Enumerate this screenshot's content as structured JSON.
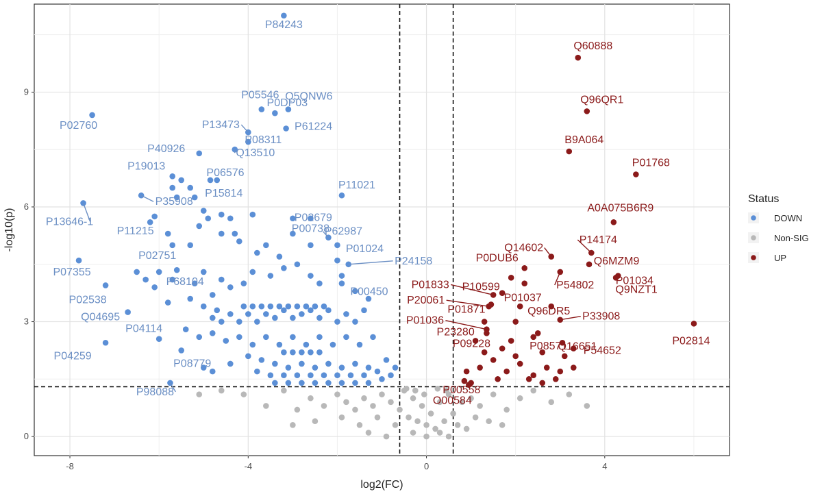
{
  "chart_data": {
    "type": "scatter",
    "xlabel": "log2(FC)",
    "ylabel": "-log10(p)",
    "xlim": [
      -8.8,
      6.8
    ],
    "ylim": [
      -0.5,
      11.3
    ],
    "x_ticks": [
      -8,
      -4,
      0,
      4
    ],
    "x_tick_labels": [
      "-8",
      "-4",
      "0",
      "4"
    ],
    "y_ticks": [
      0,
      3,
      6,
      9
    ],
    "y_tick_labels": [
      "0",
      "3",
      "6",
      "9"
    ],
    "thresholds": {
      "log2fc": [
        -0.6,
        0.6
      ],
      "neglog10p": 1.3
    },
    "colors": {
      "DOWN": "#5b8fd6",
      "Non-SIG": "#b8b8b8",
      "UP": "#8b1a1a",
      "label_down": "#6b8fc4",
      "label_up": "#8b1a1a"
    },
    "legend": {
      "title": "Status",
      "position": "right",
      "items": [
        {
          "key": "DOWN",
          "label": "DOWN"
        },
        {
          "key": "Non-SIG",
          "label": "Non-SIG"
        },
        {
          "key": "UP",
          "label": "UP"
        }
      ]
    },
    "labeled_points": [
      {
        "id": "P84243",
        "status": "DOWN",
        "x": -3.2,
        "y": 11.0
      },
      {
        "id": "P05546",
        "status": "DOWN",
        "x": -3.7,
        "y": 8.55
      },
      {
        "id": "Q5QNW6",
        "status": "DOWN",
        "x": -3.1,
        "y": 8.55
      },
      {
        "id": "P13473",
        "status": "DOWN",
        "x": -4.0,
        "y": 7.95
      },
      {
        "id": "P0DP03",
        "status": "DOWN",
        "x": -3.4,
        "y": 8.45
      },
      {
        "id": "P61224",
        "status": "DOWN",
        "x": -3.15,
        "y": 8.05
      },
      {
        "id": "P08311",
        "status": "DOWN",
        "x": -4.0,
        "y": 7.7
      },
      {
        "id": "P40926",
        "status": "DOWN",
        "x": -5.1,
        "y": 7.4
      },
      {
        "id": "Q13510",
        "status": "DOWN",
        "x": -4.3,
        "y": 7.5
      },
      {
        "id": "P02760",
        "status": "DOWN",
        "x": -7.5,
        "y": 8.4
      },
      {
        "id": "P19013",
        "status": "DOWN",
        "x": -5.7,
        "y": 6.8
      },
      {
        "id": "P06576",
        "status": "DOWN",
        "x": -4.85,
        "y": 6.7
      },
      {
        "id": "P15814",
        "status": "DOWN",
        "x": -4.7,
        "y": 6.7
      },
      {
        "id": "P11021",
        "status": "DOWN",
        "x": -1.9,
        "y": 6.3
      },
      {
        "id": "P35908",
        "status": "DOWN",
        "x": -6.4,
        "y": 6.3
      },
      {
        "id": "P00738",
        "status": "DOWN",
        "x": -2.6,
        "y": 5.7
      },
      {
        "id": "P13646-1",
        "status": "DOWN",
        "x": -7.7,
        "y": 6.1
      },
      {
        "id": "P11215",
        "status": "DOWN",
        "x": -6.1,
        "y": 5.75
      },
      {
        "id": "P02679",
        "status": "DOWN",
        "x": -3.0,
        "y": 5.7
      },
      {
        "id": "P62987",
        "status": "DOWN",
        "x": -2.2,
        "y": 5.2
      },
      {
        "id": "P01024",
        "status": "DOWN",
        "x": -2.0,
        "y": 5.0
      },
      {
        "id": "P02751",
        "status": "DOWN",
        "x": -5.7,
        "y": 5.0
      },
      {
        "id": "P07355",
        "status": "DOWN",
        "x": -7.8,
        "y": 4.6
      },
      {
        "id": "P24158",
        "status": "DOWN",
        "x": -1.75,
        "y": 4.5
      },
      {
        "id": "P68104",
        "status": "DOWN",
        "x": -5.6,
        "y": 4.35
      },
      {
        "id": "P02538",
        "status": "DOWN",
        "x": -7.2,
        "y": 3.95
      },
      {
        "id": "P00450",
        "status": "DOWN",
        "x": -1.9,
        "y": 4.2
      },
      {
        "id": "Q04695",
        "status": "DOWN",
        "x": -6.7,
        "y": 3.25
      },
      {
        "id": "P04114",
        "status": "DOWN",
        "x": -6.0,
        "y": 2.55
      },
      {
        "id": "P04259",
        "status": "DOWN",
        "x": -7.2,
        "y": 2.45
      },
      {
        "id": "P08779",
        "status": "DOWN",
        "x": -5.5,
        "y": 2.25
      },
      {
        "id": "P98088",
        "status": "DOWN",
        "x": -5.75,
        "y": 1.4
      },
      {
        "id": "Q60888",
        "status": "UP",
        "x": 3.4,
        "y": 9.9
      },
      {
        "id": "Q96QR1",
        "status": "UP",
        "x": 3.6,
        "y": 8.5
      },
      {
        "id": "B9A064",
        "status": "UP",
        "x": 3.2,
        "y": 7.45
      },
      {
        "id": "P01768",
        "status": "UP",
        "x": 4.7,
        "y": 6.85
      },
      {
        "id": "A0A075B6R9",
        "status": "UP",
        "x": 4.2,
        "y": 5.6
      },
      {
        "id": "Q14602",
        "status": "UP",
        "x": 2.8,
        "y": 4.7
      },
      {
        "id": "P14174",
        "status": "UP",
        "x": 3.7,
        "y": 4.8
      },
      {
        "id": "Q6MZM9",
        "status": "UP",
        "x": 3.65,
        "y": 4.5
      },
      {
        "id": "P0DUB6",
        "status": "UP",
        "x": 2.2,
        "y": 4.4
      },
      {
        "id": "P01034",
        "status": "UP",
        "x": 4.3,
        "y": 4.2
      },
      {
        "id": "P54802",
        "status": "UP",
        "x": 3.0,
        "y": 4.3
      },
      {
        "id": "Q9NZT1",
        "status": "UP",
        "x": 4.25,
        "y": 4.15
      },
      {
        "id": "P10599",
        "status": "UP",
        "x": 1.9,
        "y": 4.15
      },
      {
        "id": "P01833",
        "status": "UP",
        "x": 1.5,
        "y": 3.7
      },
      {
        "id": "P01037",
        "status": "UP",
        "x": 1.7,
        "y": 3.75
      },
      {
        "id": "P01871",
        "status": "UP",
        "x": 1.45,
        "y": 3.45
      },
      {
        "id": "P20061",
        "status": "UP",
        "x": 1.4,
        "y": 3.4
      },
      {
        "id": "Q96DR5",
        "status": "UP",
        "x": 2.1,
        "y": 3.4
      },
      {
        "id": "P33908",
        "status": "UP",
        "x": 3.0,
        "y": 3.05
      },
      {
        "id": "P23280",
        "status": "UP",
        "x": 1.3,
        "y": 3.0
      },
      {
        "id": "P01036",
        "status": "UP",
        "x": 1.35,
        "y": 2.8
      },
      {
        "id": "P08571",
        "status": "UP",
        "x": 2.4,
        "y": 2.6
      },
      {
        "id": "Q16651",
        "status": "UP",
        "x": 3.05,
        "y": 2.45
      },
      {
        "id": "P02814",
        "status": "UP",
        "x": 6.0,
        "y": 2.95
      },
      {
        "id": "P09228",
        "status": "UP",
        "x": 1.35,
        "y": 2.7
      },
      {
        "id": "P54652",
        "status": "UP",
        "x": 3.3,
        "y": 2.3
      },
      {
        "id": "P00558",
        "status": "UP",
        "x": 0.85,
        "y": 1.45
      },
      {
        "id": "O00584",
        "status": "UP",
        "x": 0.95,
        "y": 1.35
      }
    ],
    "unlabeled_points": [
      {
        "x": -5.7,
        "y": 6.5
      },
      {
        "x": -5.5,
        "y": 6.7
      },
      {
        "x": -5.3,
        "y": 6.5
      },
      {
        "x": -5.6,
        "y": 6.25
      },
      {
        "x": -5.2,
        "y": 6.25
      },
      {
        "x": -6.2,
        "y": 5.6
      },
      {
        "x": -5.8,
        "y": 5.3
      },
      {
        "x": -5.3,
        "y": 5.0
      },
      {
        "x": -5.1,
        "y": 5.5
      },
      {
        "x": -5.0,
        "y": 5.9
      },
      {
        "x": -4.9,
        "y": 5.7
      },
      {
        "x": -4.6,
        "y": 5.3
      },
      {
        "x": -4.6,
        "y": 5.8
      },
      {
        "x": -4.4,
        "y": 5.7
      },
      {
        "x": -4.3,
        "y": 5.3
      },
      {
        "x": -4.2,
        "y": 5.1
      },
      {
        "x": -3.9,
        "y": 5.8
      },
      {
        "x": -3.8,
        "y": 4.8
      },
      {
        "x": -3.6,
        "y": 5.0
      },
      {
        "x": -3.3,
        "y": 4.7
      },
      {
        "x": -3.9,
        "y": 4.3
      },
      {
        "x": -4.1,
        "y": 4.0
      },
      {
        "x": -3.5,
        "y": 4.2
      },
      {
        "x": -3.2,
        "y": 4.4
      },
      {
        "x": -2.9,
        "y": 4.5
      },
      {
        "x": -2.6,
        "y": 4.2
      },
      {
        "x": -2.4,
        "y": 4.0
      },
      {
        "x": -2.0,
        "y": 4.6
      },
      {
        "x": -2.6,
        "y": 5.0
      },
      {
        "x": -3.0,
        "y": 5.3
      },
      {
        "x": -6.5,
        "y": 4.3
      },
      {
        "x": -6.3,
        "y": 4.1
      },
      {
        "x": -6.0,
        "y": 4.3
      },
      {
        "x": -5.7,
        "y": 4.1
      },
      {
        "x": -5.2,
        "y": 4.0
      },
      {
        "x": -5.0,
        "y": 4.3
      },
      {
        "x": -4.8,
        "y": 3.7
      },
      {
        "x": -4.6,
        "y": 4.1
      },
      {
        "x": -4.4,
        "y": 3.9
      },
      {
        "x": -6.1,
        "y": 3.9
      },
      {
        "x": -5.3,
        "y": 3.6
      },
      {
        "x": -5.0,
        "y": 3.4
      },
      {
        "x": -4.8,
        "y": 3.1
      },
      {
        "x": -4.6,
        "y": 3.0
      },
      {
        "x": -4.4,
        "y": 3.2
      },
      {
        "x": -4.2,
        "y": 3.0
      },
      {
        "x": -4.0,
        "y": 3.2
      },
      {
        "x": -3.8,
        "y": 3.0
      },
      {
        "x": -3.6,
        "y": 3.2
      },
      {
        "x": -3.4,
        "y": 3.1
      },
      {
        "x": -3.2,
        "y": 3.3
      },
      {
        "x": -3.0,
        "y": 3.1
      },
      {
        "x": -2.8,
        "y": 3.2
      },
      {
        "x": -2.6,
        "y": 3.3
      },
      {
        "x": -2.4,
        "y": 3.1
      },
      {
        "x": -2.2,
        "y": 3.3
      },
      {
        "x": -2.0,
        "y": 3.0
      },
      {
        "x": -1.8,
        "y": 3.2
      },
      {
        "x": -1.6,
        "y": 3.0
      },
      {
        "x": -1.4,
        "y": 3.3
      },
      {
        "x": -4.1,
        "y": 3.4
      },
      {
        "x": -3.9,
        "y": 3.4
      },
      {
        "x": -3.7,
        "y": 3.4
      },
      {
        "x": -3.5,
        "y": 3.4
      },
      {
        "x": -3.3,
        "y": 3.4
      },
      {
        "x": -3.1,
        "y": 3.4
      },
      {
        "x": -2.9,
        "y": 3.4
      },
      {
        "x": -2.7,
        "y": 3.4
      },
      {
        "x": -2.5,
        "y": 3.4
      },
      {
        "x": -2.3,
        "y": 3.4
      },
      {
        "x": -5.4,
        "y": 2.8
      },
      {
        "x": -5.1,
        "y": 2.6
      },
      {
        "x": -4.8,
        "y": 2.7
      },
      {
        "x": -4.5,
        "y": 2.5
      },
      {
        "x": -4.2,
        "y": 2.6
      },
      {
        "x": -3.9,
        "y": 2.4
      },
      {
        "x": -3.6,
        "y": 2.6
      },
      {
        "x": -3.3,
        "y": 2.4
      },
      {
        "x": -3.0,
        "y": 2.6
      },
      {
        "x": -2.7,
        "y": 2.4
      },
      {
        "x": -2.4,
        "y": 2.6
      },
      {
        "x": -2.1,
        "y": 2.4
      },
      {
        "x": -1.8,
        "y": 2.6
      },
      {
        "x": -1.5,
        "y": 2.4
      },
      {
        "x": -1.2,
        "y": 2.6
      },
      {
        "x": -3.2,
        "y": 2.2
      },
      {
        "x": -3.0,
        "y": 2.2
      },
      {
        "x": -2.8,
        "y": 2.2
      },
      {
        "x": -2.6,
        "y": 2.2
      },
      {
        "x": -2.4,
        "y": 2.2
      },
      {
        "x": -4.0,
        "y": 2.1
      },
      {
        "x": -3.7,
        "y": 2.0
      },
      {
        "x": -3.4,
        "y": 1.9
      },
      {
        "x": -3.1,
        "y": 1.8
      },
      {
        "x": -2.8,
        "y": 1.9
      },
      {
        "x": -2.5,
        "y": 1.8
      },
      {
        "x": -2.2,
        "y": 1.9
      },
      {
        "x": -1.9,
        "y": 1.8
      },
      {
        "x": -1.6,
        "y": 1.9
      },
      {
        "x": -1.3,
        "y": 1.8
      },
      {
        "x": -3.8,
        "y": 1.7
      },
      {
        "x": -3.5,
        "y": 1.6
      },
      {
        "x": -3.2,
        "y": 1.6
      },
      {
        "x": -2.9,
        "y": 1.6
      },
      {
        "x": -2.6,
        "y": 1.6
      },
      {
        "x": -2.3,
        "y": 1.6
      },
      {
        "x": -2.0,
        "y": 1.6
      },
      {
        "x": -1.7,
        "y": 1.6
      },
      {
        "x": -1.4,
        "y": 1.6
      },
      {
        "x": -1.1,
        "y": 1.7
      },
      {
        "x": -3.4,
        "y": 1.4
      },
      {
        "x": -3.1,
        "y": 1.4
      },
      {
        "x": -2.8,
        "y": 1.4
      },
      {
        "x": -2.5,
        "y": 1.4
      },
      {
        "x": -2.2,
        "y": 1.4
      },
      {
        "x": -1.9,
        "y": 1.4
      },
      {
        "x": -1.6,
        "y": 1.4
      },
      {
        "x": -1.3,
        "y": 1.4
      },
      {
        "x": -1.0,
        "y": 1.5
      },
      {
        "x": -0.8,
        "y": 1.6
      },
      {
        "x": -5.0,
        "y": 1.8
      },
      {
        "x": -4.8,
        "y": 1.7
      },
      {
        "x": -4.4,
        "y": 1.9
      },
      {
        "x": -0.9,
        "y": 2.0
      },
      {
        "x": -0.7,
        "y": 1.8
      },
      {
        "x": -1.3,
        "y": 3.6
      },
      {
        "x": -1.6,
        "y": 3.8
      },
      {
        "x": -1.9,
        "y": 4.0
      },
      {
        "x": -4.7,
        "y": 3.3
      },
      {
        "x": -5.8,
        "y": 3.5
      },
      {
        "x": 0.9,
        "y": 1.7
      },
      {
        "x": 1.2,
        "y": 1.8
      },
      {
        "x": 1.5,
        "y": 2.0
      },
      {
        "x": 1.8,
        "y": 1.7
      },
      {
        "x": 2.1,
        "y": 1.9
      },
      {
        "x": 2.4,
        "y": 1.6
      },
      {
        "x": 2.7,
        "y": 1.8
      },
      {
        "x": 3.0,
        "y": 1.7
      },
      {
        "x": 3.3,
        "y": 1.8
      },
      {
        "x": 2.3,
        "y": 1.5
      },
      {
        "x": 1.3,
        "y": 2.2
      },
      {
        "x": 1.7,
        "y": 2.3
      },
      {
        "x": 2.0,
        "y": 2.1
      },
      {
        "x": 2.6,
        "y": 2.2
      },
      {
        "x": 3.1,
        "y": 2.1
      },
      {
        "x": 1.1,
        "y": 2.5
      },
      {
        "x": 1.9,
        "y": 2.5
      },
      {
        "x": 2.5,
        "y": 2.7
      },
      {
        "x": 2.8,
        "y": 3.4
      },
      {
        "x": 2.0,
        "y": 3.0
      },
      {
        "x": 1.0,
        "y": 1.4
      },
      {
        "x": 2.6,
        "y": 1.4
      },
      {
        "x": 2.9,
        "y": 1.5
      },
      {
        "x": 1.6,
        "y": 1.5
      },
      {
        "x": 2.2,
        "y": 4.0
      },
      {
        "x": -0.5,
        "y": 1.2
      },
      {
        "x": -0.3,
        "y": 1.0
      },
      {
        "x": -0.1,
        "y": 0.8
      },
      {
        "x": 0.1,
        "y": 0.6
      },
      {
        "x": 0.3,
        "y": 0.9
      },
      {
        "x": 0.5,
        "y": 1.1
      },
      {
        "x": -0.6,
        "y": 0.7
      },
      {
        "x": -0.4,
        "y": 0.5
      },
      {
        "x": -0.2,
        "y": 0.4
      },
      {
        "x": 0.0,
        "y": 0.3
      },
      {
        "x": 0.2,
        "y": 0.2
      },
      {
        "x": 0.4,
        "y": 0.4
      },
      {
        "x": 0.6,
        "y": 0.6
      },
      {
        "x": 0.8,
        "y": 0.9
      },
      {
        "x": 1.0,
        "y": 1.0
      },
      {
        "x": -0.8,
        "y": 0.9
      },
      {
        "x": -1.0,
        "y": 1.1
      },
      {
        "x": -1.2,
        "y": 0.8
      },
      {
        "x": -1.4,
        "y": 1.0
      },
      {
        "x": -1.6,
        "y": 0.7
      },
      {
        "x": -1.8,
        "y": 0.9
      },
      {
        "x": -2.0,
        "y": 1.1
      },
      {
        "x": -2.3,
        "y": 0.8
      },
      {
        "x": -2.6,
        "y": 1.0
      },
      {
        "x": -2.9,
        "y": 0.7
      },
      {
        "x": -3.2,
        "y": 1.2
      },
      {
        "x": -3.6,
        "y": 0.8
      },
      {
        "x": -4.1,
        "y": 1.1
      },
      {
        "x": -4.6,
        "y": 1.2
      },
      {
        "x": -5.1,
        "y": 1.1
      },
      {
        "x": 1.2,
        "y": 0.8
      },
      {
        "x": 1.5,
        "y": 1.1
      },
      {
        "x": 1.8,
        "y": 0.7
      },
      {
        "x": 2.1,
        "y": 1.0
      },
      {
        "x": 2.4,
        "y": 1.2
      },
      {
        "x": 2.8,
        "y": 0.9
      },
      {
        "x": 3.2,
        "y": 1.1
      },
      {
        "x": 3.6,
        "y": 0.8
      },
      {
        "x": 1.4,
        "y": 0.4
      },
      {
        "x": 0.9,
        "y": 0.2
      },
      {
        "x": -0.7,
        "y": 0.3
      },
      {
        "x": -1.1,
        "y": 0.5
      },
      {
        "x": -1.5,
        "y": 0.3
      },
      {
        "x": -1.9,
        "y": 0.5
      },
      {
        "x": -0.3,
        "y": 0.1
      },
      {
        "x": 0.3,
        "y": 0.1
      },
      {
        "x": 0.7,
        "y": 0.3
      },
      {
        "x": 1.1,
        "y": 0.5
      },
      {
        "x": -2.5,
        "y": 0.4
      },
      {
        "x": -3.0,
        "y": 0.3
      },
      {
        "x": -1.3,
        "y": 0.1
      },
      {
        "x": -0.9,
        "y": 0.0
      },
      {
        "x": 0.0,
        "y": 0.0
      },
      {
        "x": 0.5,
        "y": 0.0
      },
      {
        "x": 1.7,
        "y": 0.3
      },
      {
        "x": -0.45,
        "y": 1.25
      },
      {
        "x": -0.25,
        "y": 1.2
      },
      {
        "x": 0.25,
        "y": 1.25
      },
      {
        "x": 0.45,
        "y": 1.2
      },
      {
        "x": -0.05,
        "y": 1.1
      }
    ]
  }
}
